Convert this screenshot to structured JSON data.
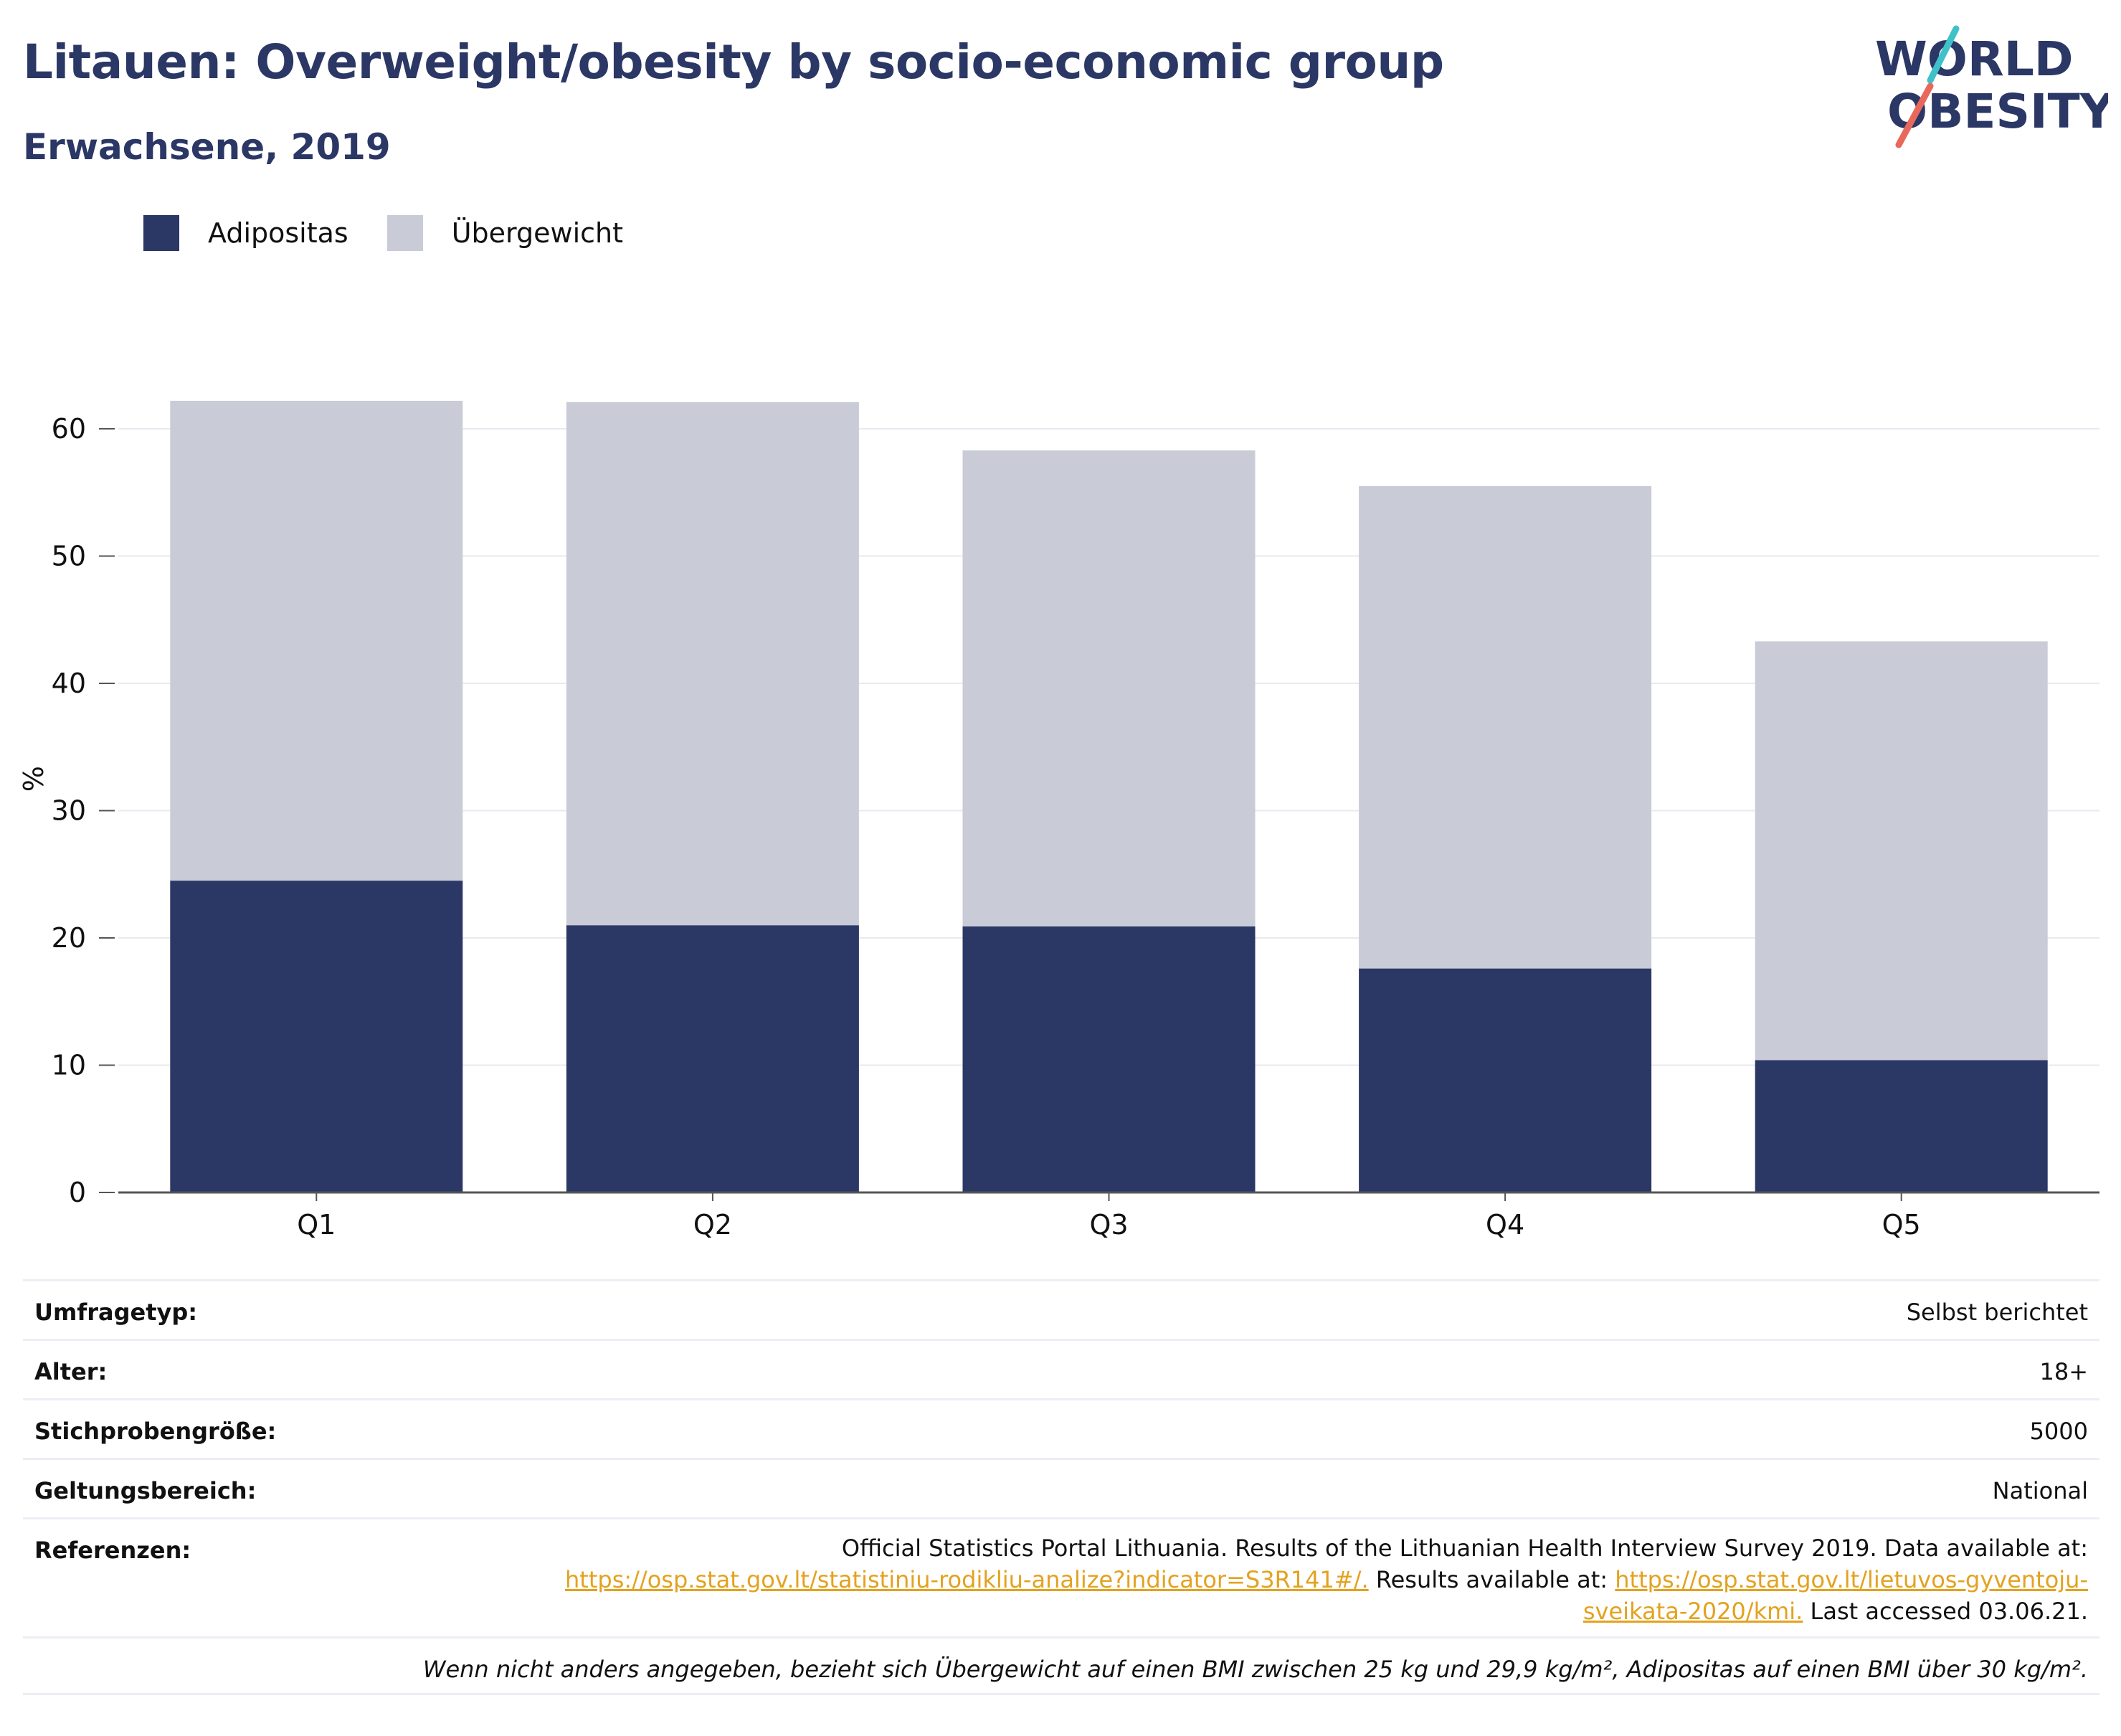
{
  "header": {
    "title": "Litauen: Overweight/obesity by socio-economic group",
    "subtitle": "Erwachsene, 2019",
    "logo_line1": "WORLD",
    "logo_line2": "OBESITY"
  },
  "legend": [
    {
      "label": "Adipositas",
      "color": "#2b3765"
    },
    {
      "label": "Übergewicht",
      "color": "#c9cbd7"
    }
  ],
  "chart_data": {
    "type": "bar",
    "stacked": true,
    "categories": [
      "Q1",
      "Q2",
      "Q3",
      "Q4",
      "Q5"
    ],
    "series": [
      {
        "name": "Adipositas",
        "values": [
          24.5,
          21.0,
          20.9,
          17.6,
          10.4
        ],
        "color": "#2b3765"
      },
      {
        "name": "Übergewicht",
        "values": [
          37.7,
          41.1,
          37.4,
          37.9,
          32.9
        ],
        "color": "#c9cbd7"
      }
    ],
    "ylabel": "%",
    "xlabel": "",
    "ylim": [
      0,
      65
    ],
    "yticks": [
      0,
      10,
      20,
      30,
      40,
      50,
      60
    ],
    "grid": true,
    "legend_position": "top-left"
  },
  "info": {
    "survey_type": {
      "label": "Umfragetyp:",
      "value": "Selbst berichtet"
    },
    "age": {
      "label": "Alter:",
      "value": "18+"
    },
    "sample_size": {
      "label": "Stichprobengröße:",
      "value": "5000"
    },
    "scope": {
      "label": "Geltungsbereich:",
      "value": "National"
    },
    "references": {
      "label": "Referenzen:",
      "line1": "Official Statistics Portal Lithuania. Results of the Lithuanian Health Interview Survey 2019. Data available at:",
      "link1": "https://osp.stat.gov.lt/statistiniu-rodikliu-analize?indicator=S3R141#/.",
      "mid_text": " Results available at: ",
      "link2a": "https://osp.stat.gov.lt/lietuvos-gyventoju-",
      "link2b": "sveikata-2020/kmi.",
      "tail": " Last accessed 03.06.21."
    },
    "note": "Wenn nicht anders angegeben, bezieht sich Übergewicht auf einen BMI zwischen 25 kg und 29,9 kg/m², Adipositas auf einen BMI über 30 kg/m²."
  }
}
